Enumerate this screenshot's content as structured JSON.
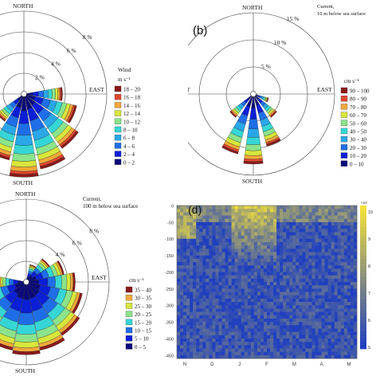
{
  "colors": {
    "wind_bins": [
      "#0a0a7a",
      "#0b1fd6",
      "#1f6ee8",
      "#2aa7e8",
      "#36d6d6",
      "#8be48b",
      "#d8e63c",
      "#f2a93b",
      "#e0482e",
      "#8a1a1a"
    ],
    "current10_bins": [
      "#0a0a7a",
      "#0b1fd6",
      "#1f6ee8",
      "#2aa7e8",
      "#36d6d6",
      "#8be48b",
      "#d8e63c",
      "#f2a93b",
      "#e0482e",
      "#8a1a1a"
    ],
    "current100_bins": [
      "#0a0a7a",
      "#0b1fd6",
      "#1f6ee8",
      "#36d6d6",
      "#8be48b",
      "#d8e63c",
      "#f2a93b",
      "#8a1a1a"
    ],
    "heatmap_low": "#1f3fbf",
    "heatmap_high": "#f5e23a"
  },
  "chart_data": [
    {
      "type": "polar-bar",
      "panel": "a",
      "compass": {
        "north": "NORTH",
        "south": "SOUTH",
        "east": "EAST"
      },
      "rings": [
        "2 %",
        "4 %",
        "6 %",
        "8 %"
      ],
      "legend_title": "Wind",
      "legend_unit": "m s⁻¹",
      "legend_labels": [
        "18 – 20",
        "16 – 18",
        "14 – 16",
        "12 – 14",
        "10 – 12",
        "8 – 10",
        "6 – 8",
        "4 – 6",
        "2 – 4",
        "0 – 2"
      ],
      "directions_deg": [
        90,
        112.5,
        135,
        157.5,
        180,
        202.5,
        225
      ],
      "frequency_percent": [
        3.5,
        5.0,
        6.2,
        7.2,
        7.8,
        6.3,
        3.0
      ]
    },
    {
      "type": "polar-bar",
      "panel": "b",
      "panel_label": "(b)",
      "title_line1": "Current,",
      "title_line2": "10 m below sea surface",
      "compass": {
        "north": "NORTH",
        "south": "SOUTH",
        "east": "EAST",
        "west": "WEST"
      },
      "rings": [
        "5 %",
        "10 %",
        "15 %"
      ],
      "legend_unit": "cm s⁻¹",
      "legend_labels": [
        "90 – 100",
        "80 – 90",
        "70 – 80",
        "60 – 70",
        "50 – 60",
        "40 – 50",
        "30 – 40",
        "20 – 30",
        "10 – 20",
        "0 – 10"
      ],
      "directions_deg": [
        157.5,
        180,
        202.5,
        225,
        135,
        112.5
      ],
      "frequency_percent": [
        9.5,
        12.5,
        11.0,
        5.0,
        5.0,
        2.5
      ]
    },
    {
      "type": "polar-bar",
      "panel": "c",
      "title_line1": "Current,",
      "title_line2": "100 m below sea surface",
      "compass": {
        "north": "NORTH",
        "south": "SOUTH",
        "east": "EAST"
      },
      "rings": [
        "2 %",
        "4 %",
        "6 %",
        "8 %"
      ],
      "legend_unit": "cm s⁻¹",
      "legend_labels": [
        "35 – 40",
        "30 – 35",
        "25 – 30",
        "20 – 25",
        "15 – 20",
        "10 – 15",
        "5 – 10",
        "0 – 5"
      ],
      "directions_deg": [
        22.5,
        45,
        67.5,
        90,
        112.5,
        135,
        157.5,
        180,
        202.5,
        225,
        247.5,
        270
      ],
      "frequency_percent": [
        1.5,
        2.5,
        3.5,
        4.5,
        5.3,
        6.0,
        6.5,
        6.8,
        6.5,
        5.5,
        4.0,
        2.5
      ]
    },
    {
      "type": "heatmap",
      "panel": "d",
      "panel_label": "(d)",
      "y_ticks": [
        "0",
        "-50",
        "-100",
        "-150",
        "-200",
        "-250",
        "-300",
        "-350",
        "-400",
        "-450"
      ],
      "ylim": [
        -460,
        0
      ],
      "x_ticks": [
        "N",
        "D",
        "J",
        "F",
        "M",
        "A",
        "M"
      ],
      "colorbar_ticks": [
        "10",
        "9",
        "8",
        "7",
        "6",
        "5"
      ],
      "colorbar_exponent": "×10"
    }
  ]
}
